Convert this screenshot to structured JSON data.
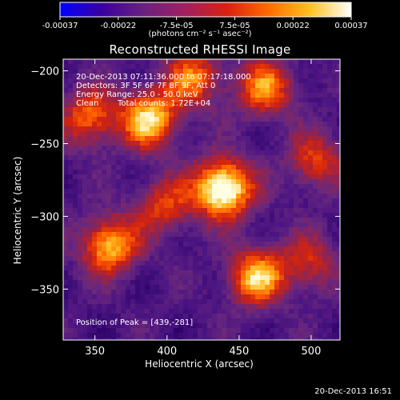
{
  "chart_data": {
    "type": "heatmap",
    "title": "Reconstructed RHESSI Image",
    "xlabel": "Heliocentric X (arcsec)",
    "ylabel": "Heliocentric Y (arcsec)",
    "xlim": [
      328,
      520
    ],
    "ylim": [
      -385,
      -192
    ],
    "x_ticks": [
      "350",
      "400",
      "450",
      "500"
    ],
    "x_tick_values": [
      350,
      400,
      450,
      500
    ],
    "y_ticks": [
      "-200",
      "-250",
      "-300",
      "-350"
    ],
    "y_tick_values": [
      -200,
      -250,
      -300,
      -350
    ],
    "colorbar": {
      "unit_label": "(photons cm⁻² s⁻¹ asec⁻²)",
      "ticks": [
        "-0.00037",
        "-0.00022",
        "-7.5e-05",
        "7.5e-05",
        "0.00022",
        "0.00037"
      ],
      "range": [
        -0.00037,
        0.00037
      ],
      "colors": [
        "#0000ff",
        "#3a00a0",
        "#6a2080",
        "#a02060",
        "#d82010",
        "#ff6a00",
        "#ffc020",
        "#ffffff"
      ]
    },
    "sources": [
      {
        "x": 439,
        "y": -281,
        "intensity": 1.0
      },
      {
        "x": 388,
        "y": -233,
        "intensity": 0.75
      },
      {
        "x": 360,
        "y": -320,
        "intensity": 0.72
      },
      {
        "x": 462,
        "y": -342,
        "intensity": 0.7
      },
      {
        "x": 468,
        "y": -212,
        "intensity": 0.6
      },
      {
        "x": 347,
        "y": -232,
        "intensity": 0.55
      },
      {
        "x": 418,
        "y": -205,
        "intensity": 0.55
      },
      {
        "x": 398,
        "y": -293,
        "intensity": 0.45
      },
      {
        "x": 503,
        "y": -262,
        "intensity": 0.45
      },
      {
        "x": 498,
        "y": -332,
        "intensity": 0.4
      }
    ],
    "peak": {
      "x": 439,
      "y": -281
    }
  },
  "annotations": {
    "time_range": "20-Dec-2013 07:11:36.000 to 07:17:18.000",
    "detectors": "Detectors: 3F 5F 6F 7F 8F 9F, Att 0",
    "energy": "Energy Range: 25.0 - 50.0 keV",
    "clean": "Clean",
    "total_counts": "Total counts: 1.72E+04",
    "peak_position": "Position of Peak = [439,-281]"
  },
  "footer_timestamp": "20-Dec-2013 16:51"
}
